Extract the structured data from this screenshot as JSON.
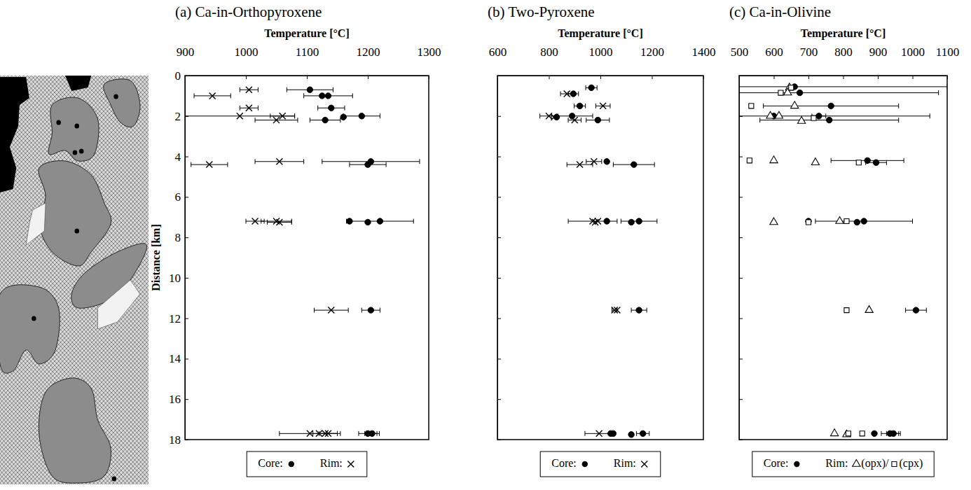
{
  "chart_data": [
    {
      "type": "scatter",
      "title": "(a) Ca-in-Orthopyroxene",
      "x_label": "Temperature [°C]",
      "y_label": "Distance [km]",
      "xlim": [
        900,
        1300
      ],
      "xticks": [
        900,
        1000,
        1100,
        1200,
        1300
      ],
      "ylim": [
        0,
        18
      ],
      "yticks": [
        0,
        2,
        4,
        6,
        8,
        10,
        12,
        14,
        16,
        18
      ],
      "legend": "bottom",
      "series": [
        {
          "name": "Core:",
          "marker": "circle",
          "color": "#000000",
          "x": [
            1105,
            1125,
            1135,
            1140,
            1190,
            1160,
            1130,
            1205,
            1200,
            1170,
            1200,
            1220,
            1205,
            1200,
            1207
          ],
          "values": [
            0.7,
            1.0,
            1.0,
            1.6,
            2.0,
            2.05,
            2.2,
            4.25,
            4.4,
            7.2,
            7.25,
            7.2,
            11.6,
            17.7,
            17.7
          ],
          "error": [
            38,
            null,
            40,
            22,
            30,
            null,
            25,
            80,
            30,
            null,
            null,
            55,
            15,
            15,
            12
          ]
        },
        {
          "name": "Rim:",
          "marker": "cross",
          "color": "#000000",
          "x": [
            1005,
            945,
            1005,
            990,
            1060,
            1050,
            1055,
            940,
            1015,
            1050,
            1055,
            1140,
            1105,
            1120,
            1130,
            1135
          ],
          "values": [
            0.7,
            1.0,
            1.6,
            2.0,
            2.0,
            2.2,
            4.25,
            4.4,
            7.2,
            7.2,
            7.25,
            11.6,
            17.7,
            17.7,
            17.7,
            17.7
          ],
          "error": [
            15,
            30,
            15,
            90,
            20,
            35,
            40,
            30,
            15,
            25,
            20,
            28,
            50,
            null,
            20,
            15
          ]
        }
      ]
    },
    {
      "type": "scatter",
      "title": "(b) Two-Pyroxene",
      "x_label": "Temperature [°C]",
      "xlim": [
        600,
        1400
      ],
      "xticks": [
        600,
        800,
        1000,
        1200,
        1400
      ],
      "ylim": [
        0,
        18
      ],
      "yticks": [
        0,
        2,
        4,
        6,
        8,
        10,
        12,
        14,
        16,
        18
      ],
      "tick_labels": "x",
      "legend": "bottom",
      "series": [
        {
          "name": "Core:",
          "marker": "circle",
          "color": "#000000",
          "x": [
            965,
            895,
            920,
            890,
            830,
            990,
            1025,
            1130,
            1025,
            1120,
            1150,
            1150,
            1040,
            1050,
            1120,
            1165
          ],
          "values": [
            0.6,
            0.9,
            1.5,
            2.0,
            2.05,
            2.2,
            4.25,
            4.4,
            7.2,
            7.25,
            7.2,
            11.6,
            17.7,
            17.7,
            17.75,
            17.7
          ],
          "error": [
            22,
            20,
            22,
            80,
            null,
            45,
            null,
            80,
            null,
            null,
            70,
            30,
            null,
            null,
            null,
            25
          ]
        },
        {
          "name": "Rim:",
          "marker": "cross",
          "color": "#000000",
          "x": [
            870,
            1010,
            800,
            820,
            900,
            975,
            920,
            970,
            980,
            990,
            1055,
            1065,
            995
          ],
          "values": [
            0.9,
            1.5,
            2.0,
            2.05,
            2.2,
            4.25,
            4.4,
            7.2,
            7.25,
            7.2,
            11.6,
            11.6,
            17.7
          ],
          "error": [
            25,
            28,
            35,
            null,
            25,
            30,
            50,
            95,
            null,
            null,
            10,
            null,
            55
          ]
        }
      ]
    },
    {
      "type": "scatter",
      "title": "(c) Ca-in-Olivine",
      "x_label": "Temperature [°C]",
      "xlim": [
        500,
        1100
      ],
      "xticks": [
        500,
        600,
        700,
        800,
        900,
        1000,
        1100
      ],
      "ylim": [
        0,
        18
      ],
      "yticks": [
        0,
        2,
        4,
        6,
        8,
        10,
        12,
        14,
        16,
        18
      ],
      "tick_labels": "x",
      "legend": "bottom",
      "series": [
        {
          "name": "Core:",
          "marker": "circle",
          "color": "#000000",
          "x": [
            660,
            675,
            765,
            600,
            730,
            760,
            870,
            895,
            700,
            840,
            860,
            1010,
            890,
            935,
            945
          ],
          "values": [
            0.55,
            0.85,
            1.5,
            2.0,
            2.0,
            2.2,
            4.2,
            4.3,
            7.2,
            7.25,
            7.2,
            11.6,
            17.7,
            17.7,
            17.7
          ],
          "error": [
            440,
            400,
            195,
            450,
            20,
            200,
            105,
            30,
            null,
            null,
            140,
            30,
            null,
            25,
            20
          ]
        },
        {
          "name": "Rim:",
          "suffix": "(opx)/",
          "marker": "triangle",
          "color": "#000000",
          "x": [
            645,
            640,
            660,
            590,
            615,
            680,
            600,
            720,
            600,
            790,
            875,
            775,
            810
          ],
          "values": [
            0.6,
            0.85,
            1.5,
            2.0,
            2.0,
            2.25,
            4.2,
            4.3,
            7.25,
            7.2,
            11.6,
            17.7,
            17.75
          ]
        },
        {
          "suffix": "(cpx)",
          "marker": "square",
          "color": "#000000",
          "x": [
            650,
            620,
            535,
            715,
            530,
            845,
            700,
            810,
            810,
            815,
            855
          ],
          "values": [
            0.6,
            0.85,
            1.5,
            2.1,
            4.2,
            4.3,
            7.25,
            7.2,
            11.6,
            17.7,
            17.7
          ]
        }
      ]
    }
  ]
}
